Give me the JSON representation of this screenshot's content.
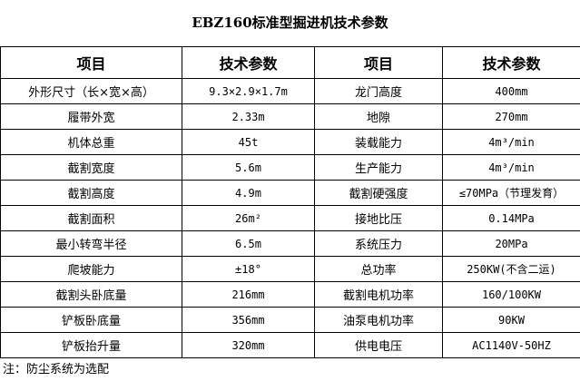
{
  "title": "EBZ160标准型掘进机技术参数",
  "headers": [
    "项目",
    "技术参数",
    "项目",
    "技术参数"
  ],
  "rows": [
    [
      "外形尺寸（长×宽×高）",
      "9.3×2.9×1.7m",
      "龙门高度",
      "400mm"
    ],
    [
      "履带外宽",
      "2.33m",
      "地隙",
      "270mm"
    ],
    [
      "机体总重",
      "45t",
      "装载能力",
      "4m³/min"
    ],
    [
      "截割宽度",
      "5.6m",
      "生产能力",
      "4m³/min"
    ],
    [
      "截割高度",
      "4.9m",
      "截割硬强度",
      "≤70MPa（节理发育）"
    ],
    [
      "截割面积",
      "26m²",
      "接地比压",
      "0.14MPa"
    ],
    [
      "最小转弯半径",
      "6.5m",
      "系统压力",
      "20MPa"
    ],
    [
      "爬坡能力",
      "±18°",
      "总功率",
      "250KW(不含二运)"
    ],
    [
      "截割头卧底量",
      "216mm",
      "截割电机功率",
      "160/100KW"
    ],
    [
      "铲板卧底量",
      "356mm",
      "油泵电机功率",
      "90KW"
    ],
    [
      "铲板抬升量",
      "320mm",
      "供电电压",
      "AC1140V-50HZ"
    ]
  ],
  "note": "注：防尘系统为选配"
}
